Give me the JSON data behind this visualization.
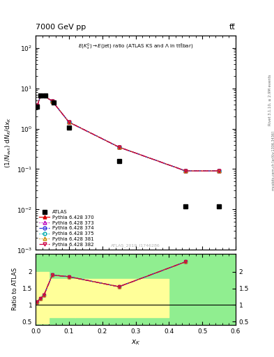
{
  "title_left": "7000 GeV pp",
  "title_right": "tt̅",
  "annotation": "E(K$^0_s$) → E(jet) ratio (ATLAS KS and Λ in ttbar)",
  "watermark": "ATLAS_2019_I1746286",
  "ylabel_main": "$(1/N_\\mathrm{evt})\\ \\mathrm{d}N_K/\\mathrm{d}x_K$",
  "ylabel_ratio": "Ratio to ATLAS",
  "xlabel": "$x_K$",
  "xlim": [
    0.0,
    0.6
  ],
  "ylim_main_log": [
    -3,
    2.5
  ],
  "ylim_ratio": [
    0.4,
    2.55
  ],
  "atlas_x": [
    0.005,
    0.015,
    0.03,
    0.055,
    0.1,
    0.25,
    0.45,
    0.55
  ],
  "atlas_y": [
    3.5,
    6.5,
    6.5,
    4.5,
    1.05,
    0.155,
    0.012,
    0.012
  ],
  "pythia_x": [
    0.005,
    0.015,
    0.025,
    0.05,
    0.1,
    0.25,
    0.45,
    0.55
  ],
  "pythia_y": [
    3.8,
    6.5,
    6.5,
    4.8,
    1.45,
    0.35,
    0.09,
    0.09
  ],
  "ratio_x": [
    0.005,
    0.015,
    0.025,
    0.05,
    0.1,
    0.25,
    0.45
  ],
  "ratio_y": [
    1.1,
    1.2,
    1.3,
    1.9,
    1.85,
    1.55,
    2.3
  ],
  "green_color": "#90ee90",
  "yellow_color": "#ffff99",
  "band_segments": [
    {
      "x": [
        0.0,
        0.04
      ],
      "ylo": 0.45,
      "yhi": 2.0
    },
    {
      "x": [
        0.04,
        0.12
      ],
      "ylo": 0.62,
      "yhi": 1.78
    },
    {
      "x": [
        0.12,
        0.4
      ],
      "ylo": 0.62,
      "yhi": 1.78
    }
  ],
  "line_styles": [
    {
      "label": "Pythia 6.428 370",
      "color": "#dd0000",
      "marker": "^",
      "ls": "-",
      "mfc": "#dd0000"
    },
    {
      "label": "Pythia 6.428 373",
      "color": "#bb00bb",
      "marker": "^",
      "ls": ":",
      "mfc": "none"
    },
    {
      "label": "Pythia 6.428 374",
      "color": "#3333dd",
      "marker": "o",
      "ls": "--",
      "mfc": "none"
    },
    {
      "label": "Pythia 6.428 375",
      "color": "#00aaaa",
      "marker": "o",
      "ls": ":",
      "mfc": "none"
    },
    {
      "label": "Pythia 6.428 381",
      "color": "#cc8800",
      "marker": "^",
      "ls": ":",
      "mfc": "none"
    },
    {
      "label": "Pythia 6.428 382",
      "color": "#cc0044",
      "marker": "v",
      "ls": "-.",
      "mfc": "none"
    }
  ],
  "figwidth": 3.93,
  "figheight": 5.12,
  "dpi": 100
}
